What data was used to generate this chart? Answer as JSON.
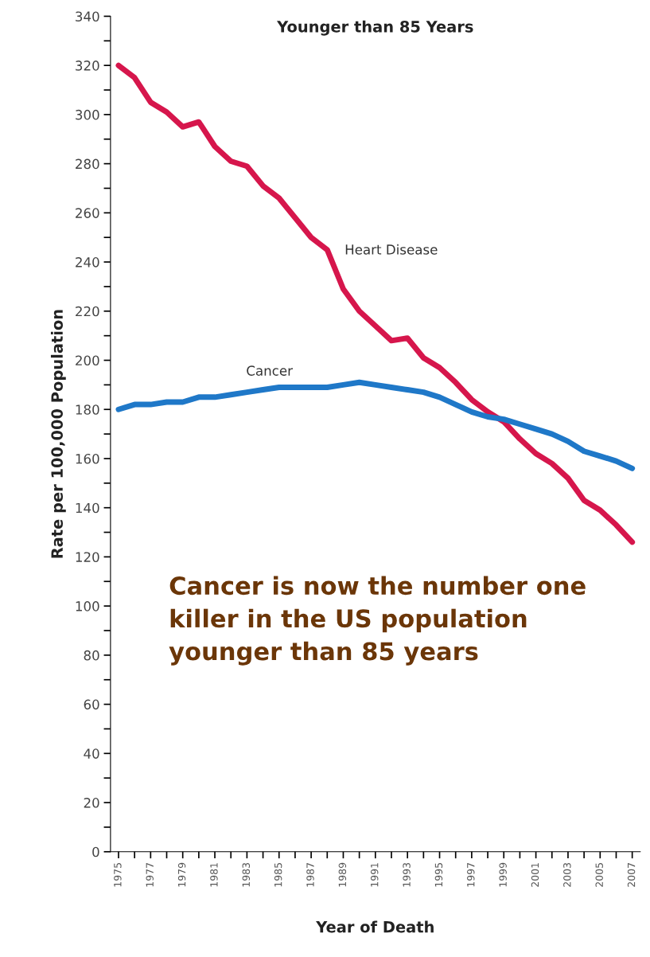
{
  "chart_data": {
    "type": "line",
    "title": "Younger than 85 Years",
    "xlabel": "Year of Death",
    "ylabel": "Rate per 100,000 Population",
    "x": [
      1975,
      1976,
      1977,
      1978,
      1979,
      1980,
      1981,
      1982,
      1983,
      1984,
      1985,
      1986,
      1987,
      1988,
      1989,
      1990,
      1991,
      1992,
      1993,
      1994,
      1995,
      1996,
      1997,
      1998,
      1999,
      2000,
      2001,
      2002,
      2003,
      2004,
      2005,
      2006,
      2007
    ],
    "series": [
      {
        "name": "Heart Disease",
        "color": "#d6164c",
        "values": [
          320,
          315,
          305,
          301,
          295,
          297,
          287,
          281,
          279,
          271,
          266,
          258,
          250,
          245,
          229,
          220,
          214,
          208,
          209,
          201,
          197,
          191,
          184,
          179,
          175,
          168,
          162,
          158,
          152,
          143,
          139,
          133,
          126
        ]
      },
      {
        "name": "Cancer",
        "color": "#1f78c8",
        "values": [
          180,
          182,
          182,
          183,
          183,
          185,
          185,
          186,
          187,
          188,
          189,
          189,
          189,
          189,
          190,
          191,
          190,
          189,
          188,
          187,
          185,
          182,
          179,
          177,
          176,
          174,
          172,
          170,
          167,
          163,
          161,
          159,
          156
        ]
      }
    ],
    "xlim": [
      1974.5,
      2007.5
    ],
    "xticks": [
      {
        "value": 1975,
        "label": "1975"
      },
      {
        "value": 1976,
        "label": null
      },
      {
        "value": 1977,
        "label": "1977"
      },
      {
        "value": 1978,
        "label": null
      },
      {
        "value": 1979,
        "label": "1979"
      },
      {
        "value": 1980,
        "label": null
      },
      {
        "value": 1981,
        "label": "1981"
      },
      {
        "value": 1982,
        "label": null
      },
      {
        "value": 1983,
        "label": "1983"
      },
      {
        "value": 1984,
        "label": null
      },
      {
        "value": 1985,
        "label": "1985"
      },
      {
        "value": 1986,
        "label": null
      },
      {
        "value": 1987,
        "label": "1987"
      },
      {
        "value": 1988,
        "label": null
      },
      {
        "value": 1989,
        "label": "1989"
      },
      {
        "value": 1990,
        "label": null
      },
      {
        "value": 1991,
        "label": "1991"
      },
      {
        "value": 1992,
        "label": null
      },
      {
        "value": 1993,
        "label": "1993"
      },
      {
        "value": 1994,
        "label": null
      },
      {
        "value": 1995,
        "label": "1995"
      },
      {
        "value": 1996,
        "label": null
      },
      {
        "value": 1997,
        "label": "1997"
      },
      {
        "value": 1998,
        "label": null
      },
      {
        "value": 1999,
        "label": "1999"
      },
      {
        "value": 2000,
        "label": null
      },
      {
        "value": 2001,
        "label": "2001"
      },
      {
        "value": 2002,
        "label": null
      },
      {
        "value": 2003,
        "label": "2003"
      },
      {
        "value": 2004,
        "label": null
      },
      {
        "value": 2005,
        "label": "2005"
      },
      {
        "value": 2006,
        "label": null
      },
      {
        "value": 2007,
        "label": "2007"
      }
    ],
    "ylim": [
      0,
      340
    ],
    "yticks": [
      0,
      {
        "value": 10,
        "label": null
      },
      20,
      {
        "value": 30,
        "label": null
      },
      40,
      {
        "value": 50,
        "label": null
      },
      60,
      {
        "value": 70,
        "label": null
      },
      80,
      {
        "value": 90,
        "label": null
      },
      100,
      {
        "value": 110,
        "label": null
      },
      120,
      {
        "value": 130,
        "label": null
      },
      140,
      {
        "value": 150,
        "label": null
      },
      160,
      {
        "value": 170,
        "label": null
      },
      180,
      {
        "value": 190,
        "label": null
      },
      200,
      {
        "value": 210,
        "label": null
      },
      220,
      {
        "value": 230,
        "label": null
      },
      240,
      {
        "value": 250,
        "label": null
      },
      260,
      {
        "value": 270,
        "label": null
      },
      280,
      {
        "value": 290,
        "label": null
      },
      300,
      {
        "value": 310,
        "label": null
      },
      320,
      {
        "value": 330,
        "label": null
      },
      340
    ],
    "annotations": [
      "Cancer is now the number one killer in the US population younger than 85 years"
    ],
    "grid": false,
    "legend": false,
    "line_style": "solid",
    "marker": "none"
  }
}
